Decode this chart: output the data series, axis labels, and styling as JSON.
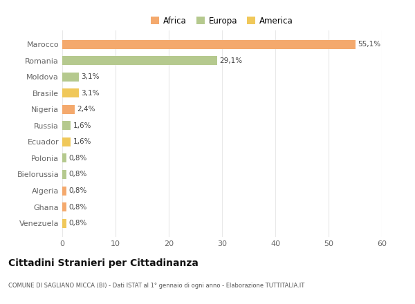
{
  "categories": [
    "Marocco",
    "Romania",
    "Moldova",
    "Brasile",
    "Nigeria",
    "Russia",
    "Ecuador",
    "Polonia",
    "Bielorussia",
    "Algeria",
    "Ghana",
    "Venezuela"
  ],
  "values": [
    55.1,
    29.1,
    3.1,
    3.1,
    2.4,
    1.6,
    1.6,
    0.8,
    0.8,
    0.8,
    0.8,
    0.8
  ],
  "labels": [
    "55,1%",
    "29,1%",
    "3,1%",
    "3,1%",
    "2,4%",
    "1,6%",
    "1,6%",
    "0,8%",
    "0,8%",
    "0,8%",
    "0,8%",
    "0,8%"
  ],
  "colors": [
    "#F4A96D",
    "#B5C98E",
    "#B5C98E",
    "#F0C85A",
    "#F4A96D",
    "#B5C98E",
    "#F0C85A",
    "#B5C98E",
    "#B5C98E",
    "#F4A96D",
    "#F4A96D",
    "#F0C85A"
  ],
  "legend_labels": [
    "Africa",
    "Europa",
    "America"
  ],
  "legend_colors": [
    "#F4A96D",
    "#B5C98E",
    "#F0C85A"
  ],
  "xlim": [
    0,
    60
  ],
  "xticks": [
    0,
    10,
    20,
    30,
    40,
    50,
    60
  ],
  "title": "Cittadini Stranieri per Cittadinanza",
  "subtitle": "COMUNE DI SAGLIANO MICCA (BI) - Dati ISTAT al 1° gennaio di ogni anno - Elaborazione TUTTITALIA.IT",
  "bg_color": "#FFFFFF",
  "grid_color": "#E8E8E8"
}
